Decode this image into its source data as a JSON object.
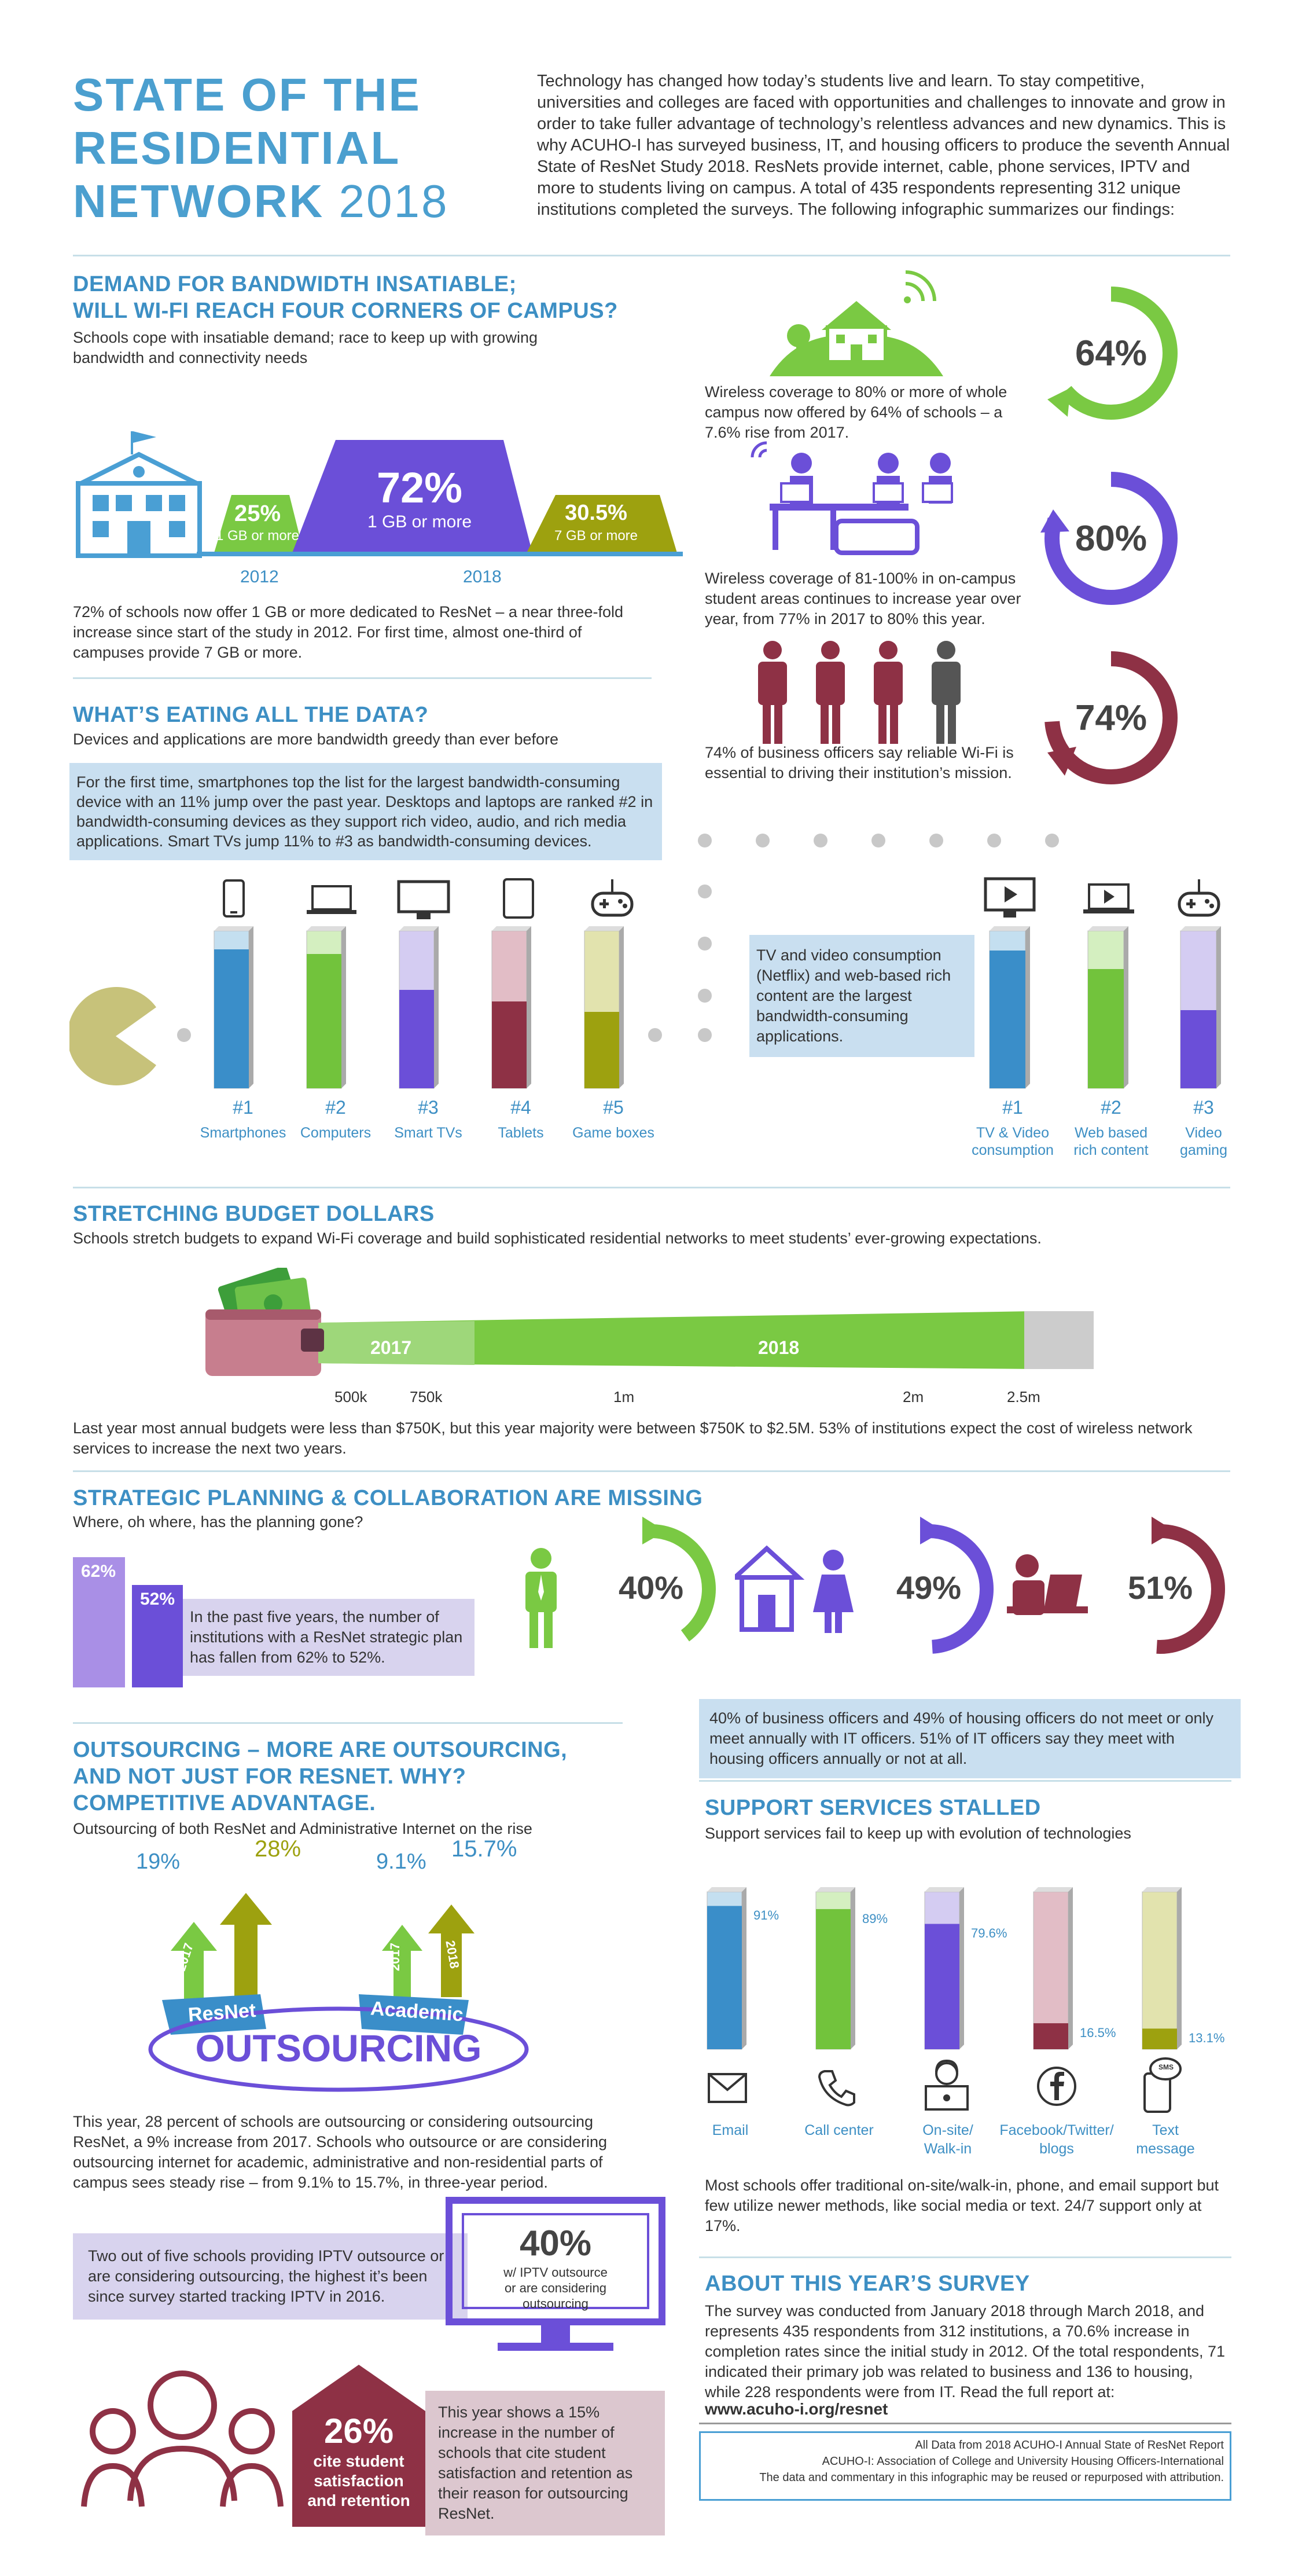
{
  "header": {
    "title_line1": "STATE OF THE",
    "title_line2": "RESIDENTIAL",
    "title_line3_a": "NETWORK",
    "title_line3_b": "2018",
    "intro": "Technology has changed how today’s students live and learn. To stay competitive, universities and colleges are faced with opportunities and challenges to innovate and grow in order to take fuller advantage of technology’s relentless advances and new dynamics. This is why ACUHO-I has surveyed business, IT, and housing officers to produce the seventh Annual State of ResNet Study 2018. ResNets provide internet, cable, phone services, IPTV and more to students living on campus. A total of 435 respondents representing 312 unique institutions completed the surveys. The following infographic summarizes our findings:"
  },
  "demand": {
    "heading_line1": "DEMAND FOR BANDWIDTH INSATIABLE;",
    "heading_line2": "WILL WI-FI REACH FOUR CORNERS OF CAMPUS?",
    "subtitle": "Schools cope with insatiable demand; race to keep up with growing bandwidth and connectivity needs",
    "left_pct": "25%",
    "left_sub": "1 GB or more",
    "mid_pct": "72%",
    "mid_sub": "1 GB or more",
    "right_pct": "30.5%",
    "right_sub": "7 GB or more",
    "year_a": "2012",
    "year_b": "2018",
    "text": "72% of schools now offer 1 GB or more dedicated to ResNet – a near three-fold increase since start of the study in 2012. For first time, almost one-third of campuses provide 7 GB or more.",
    "stat1_text": "Wireless coverage to 80% or more of whole campus now offered by 64% of schools – a 7.6% rise from 2017.",
    "stat1_value": "64%",
    "stat2_text": "Wireless coverage of 81-100% in on-campus student areas continues to increase year over year, from 77% in 2017 to 80% this year.",
    "stat2_value": "80%",
    "stat3_text": "74% of business officers say reliable Wi-Fi is essential to driving their institution’s mission.",
    "stat3_value": "74%"
  },
  "eating": {
    "heading": "WHAT’S EATING ALL THE DATA?",
    "subtitle": "Devices and applications are more bandwidth greedy than ever before",
    "box": "For the first time, smartphones top the list for the largest bandwidth-consuming device with an 11% jump over the past year. Desktops and laptops are ranked #2 in bandwidth-consuming devices as they support rich video, audio, and rich media applications. Smart TVs jump 11% to #3 as bandwidth-consuming devices.",
    "devices": [
      {
        "rank": "#1",
        "label": "Smartphones"
      },
      {
        "rank": "#2",
        "label": "Computers"
      },
      {
        "rank": "#3",
        "label": "Smart TVs"
      },
      {
        "rank": "#4",
        "label": "Tablets"
      },
      {
        "rank": "#5",
        "label": "Game boxes"
      }
    ],
    "video_box": "TV and video consumption (Netflix) and web-based rich content are the largest bandwidth-consuming applications.",
    "apps": [
      {
        "rank": "#1",
        "label1": "TV & Video",
        "label2": "consumption"
      },
      {
        "rank": "#2",
        "label1": "Web based",
        "label2": "rich content"
      },
      {
        "rank": "#3",
        "label1": "Video",
        "label2": "gaming"
      }
    ]
  },
  "budget": {
    "heading": "STRETCHING BUDGET DOLLARS",
    "subtitle": "Schools stretch budgets to expand Wi-Fi coverage and build sophisticated residential networks to meet students’ ever-growing expectations.",
    "year_a": "2017",
    "year_b": "2018",
    "ticks": [
      "500k",
      "750k",
      "1m",
      "2m",
      "2.5m"
    ],
    "text": "Last year most annual budgets were less than $750K, but this year majority were between $750K to $2.5M. 53% of institutions expect the cost of wireless network services to increase the next two years."
  },
  "planning": {
    "heading": "STRATEGIC PLANNING & COLLABORATION ARE MISSING",
    "subtitle": "Where, oh where, has the planning gone?",
    "bar_a": "62%",
    "bar_b": "52%",
    "box": "In the past five years, the number of institutions with a ResNet strategic plan has fallen from 62% to 52%.",
    "ring1": "40%",
    "ring2": "49%",
    "ring3": "51%",
    "box2": "40% of business officers and 49% of housing officers do not meet or only meet annually with IT officers. 51% of IT officers say they meet with housing officers annually or not at all."
  },
  "outsourcing": {
    "heading_line1": "OUTSOURCING – MORE ARE OUTSOURCING,",
    "heading_line2": "AND NOT JUST FOR RESNET. WHY?",
    "heading_line3": "COMPETITIVE ADVANTAGE.",
    "subtitle": "Outsourcing of both ResNet and Administrative Internet on the rise",
    "resnet_2017": "19%",
    "resnet_2018": "28%",
    "academic_2017": "9.1%",
    "academic_2018": "15.7%",
    "year_a": "2017",
    "year_b": "2018",
    "resnet_label": "ResNet",
    "academic_label": "Academic",
    "banner": "OUTSOURCING",
    "text": "This year, 28 percent of schools are outsourcing or considering outsourcing ResNet, a 9% increase from 2017. Schools who outsource or are considering outsourcing internet for academic, administrative and non-residential parts of campus sees steady rise – from 9.1% to 15.7%, in three-year period.",
    "iptv_box": "Two out of five schools providing IPTV outsource or are considering outsourcing, the highest it’s been since survey started tracking IPTV in 2016.",
    "tv_value": "40%",
    "tv_sub1": "w/ IPTV outsource",
    "tv_sub2": "or are considering",
    "tv_sub3": "outsourcing",
    "house_value": "26%",
    "house_l1": "cite student",
    "house_l2": "satisfaction",
    "house_l3": "and retention",
    "pink_box": "This year shows a 15% increase in the number of schools that cite student satisfaction and retention as their reason for outsourcing ResNet."
  },
  "support": {
    "heading": "SUPPORT SERVICES STALLED",
    "subtitle": "Support services fail to keep up with evolution of technologies",
    "bars": [
      {
        "label1": "Email",
        "label2": "",
        "value": "91%",
        "v": 91
      },
      {
        "label1": "Call center",
        "label2": "",
        "value": "89%",
        "v": 89
      },
      {
        "label1": "On-site/",
        "label2": "Walk-in",
        "value": "79.6%",
        "v": 79.6
      },
      {
        "label1": "Facebook/Twitter/",
        "label2": "blogs",
        "value": "16.5%",
        "v": 16.5
      },
      {
        "label1": "Text",
        "label2": "message",
        "value": "13.1%",
        "v": 13.1
      }
    ],
    "sms_label": "SMS",
    "text": "Most schools offer traditional on-site/walk-in, phone, and email support but few utilize newer methods, like social media or text. 24/7 support only at 17%."
  },
  "about": {
    "heading": "ABOUT THIS YEAR’S SURVEY",
    "text": "The survey was conducted from January 2018 through March 2018, and represents 435 respondents from 312 institutions, a 70.6% increase in completion rates since the initial study in 2012. Of the total respondents, 71 indicated their primary job was related to business and 136 to housing, while 228 respondents were from IT. Read the full report at:",
    "url": "www.acuho-i.org/resnet",
    "foot1": "All Data from 2018 ACUHO-I Annual State of ResNet Report",
    "foot2": "ACUHO-I: Association of College and University Housing Officers-International",
    "foot3": "The data and commentary in this infographic may be reused or repurposed with attribution."
  },
  "colors": {
    "blue": "#3d8fc4",
    "green": "#7ac943",
    "purple": "#6b4fd8",
    "maroon": "#8e3145",
    "olive": "#9da10f",
    "pink": "#d8b4bd"
  }
}
